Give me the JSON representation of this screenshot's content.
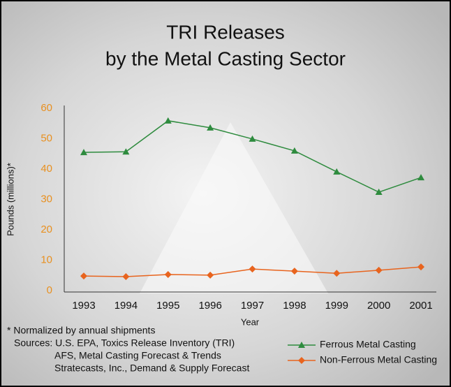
{
  "chart_data": {
    "type": "line",
    "title": [
      "TRI Releases",
      "by the Metal Casting Sector"
    ],
    "x_label": "Year",
    "y_label": "Pounds (millions)*",
    "categories": [
      "1993",
      "1994",
      "1995",
      "1996",
      "1997",
      "1998",
      "1999",
      "2000",
      "2001"
    ],
    "series": [
      {
        "name": "Ferrous Metal Casting",
        "color": "#2e8b3e",
        "marker": "triangle",
        "values": [
          45.5,
          45.7,
          55.9,
          53.6,
          49.9,
          46.0,
          39.1,
          32.4,
          37.2
        ]
      },
      {
        "name": "Non-Ferrous Metal Casting",
        "color": "#e8641e",
        "marker": "diamond",
        "values": [
          4.8,
          4.6,
          5.3,
          5.1,
          7.1,
          6.4,
          5.7,
          6.7,
          7.8
        ]
      }
    ],
    "ylim": [
      0,
      60
    ],
    "yticks": [
      0,
      10,
      20,
      30,
      40,
      50,
      60
    ],
    "ytick_color": "#e89020",
    "grid": false,
    "notes": [
      "* Normalized by annual shipments",
      "Sources: U.S. EPA, Toxics Release Inventory (TRI)",
      "AFS, Metal Casting Forecast & Trends",
      "Stratecasts, Inc., Demand & Supply Forecast"
    ],
    "legend": "bottom-right"
  }
}
